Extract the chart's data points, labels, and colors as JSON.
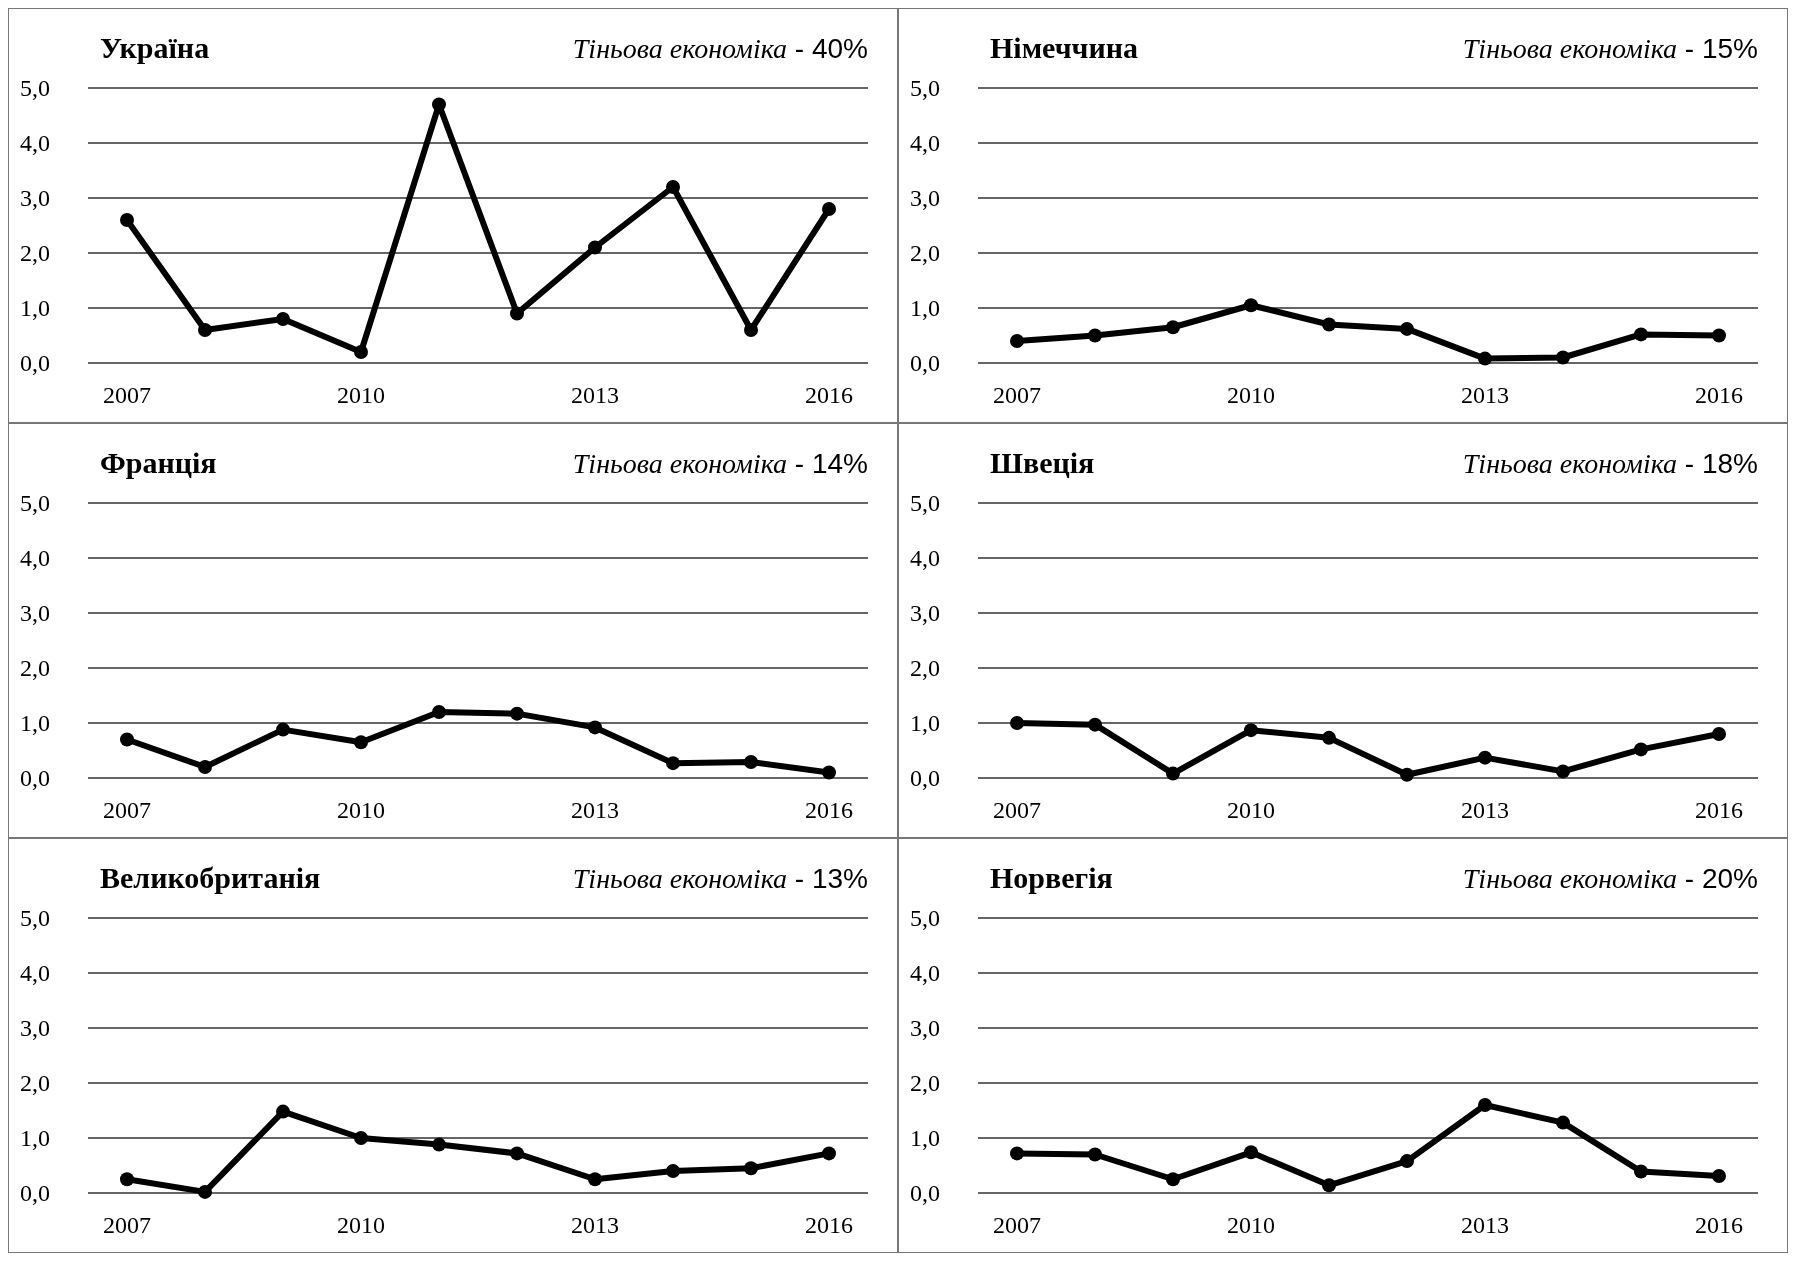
{
  "chart_data": [
    {
      "type": "line",
      "title": "Україна",
      "subtitle": "Тіньова економіка - 40%",
      "x": [
        2007,
        2008,
        2009,
        2010,
        2011,
        2012,
        2013,
        2014,
        2015,
        2016
      ],
      "series": [
        {
          "color": "#000000",
          "values": [
            2.6,
            0.6,
            0.8,
            0.2,
            4.7,
            0.9,
            2.1,
            3.2,
            0.6,
            2.8
          ]
        }
      ],
      "xlim": [
        2006.5,
        2016.5
      ],
      "xticks": [
        2007,
        2010,
        2013,
        2016
      ],
      "ylim": [
        0,
        5
      ],
      "yticks": [
        {
          "value": 0,
          "label": "0,0"
        },
        {
          "value": 1,
          "label": "1,0"
        },
        {
          "value": 2,
          "label": "2,0"
        },
        {
          "value": 3,
          "label": "3,0"
        },
        {
          "value": 4,
          "label": "4,0"
        },
        {
          "value": 5,
          "label": "5,0"
        }
      ],
      "grid": "y",
      "marker": "circle"
    },
    {
      "type": "line",
      "title": "Німеччина",
      "subtitle": "Тіньова економіка - 15%",
      "x": [
        2007,
        2008,
        2009,
        2010,
        2011,
        2012,
        2013,
        2014,
        2015,
        2016
      ],
      "series": [
        {
          "color": "#000000",
          "values": [
            0.4,
            0.5,
            0.65,
            1.05,
            0.7,
            0.62,
            0.08,
            0.1,
            0.52,
            0.5
          ]
        }
      ],
      "xlim": [
        2006.5,
        2016.5
      ],
      "xticks": [
        2007,
        2010,
        2013,
        2016
      ],
      "ylim": [
        0,
        5
      ],
      "yticks": [
        {
          "value": 0,
          "label": "0,0"
        },
        {
          "value": 1,
          "label": "1,0"
        },
        {
          "value": 2,
          "label": "2,0"
        },
        {
          "value": 3,
          "label": "3,0"
        },
        {
          "value": 4,
          "label": "4,0"
        },
        {
          "value": 5,
          "label": "5,0"
        }
      ],
      "grid": "y",
      "marker": "circle"
    },
    {
      "type": "line",
      "title": "Франція",
      "subtitle": "Тіньова економіка - 14%",
      "x": [
        2007,
        2008,
        2009,
        2010,
        2011,
        2012,
        2013,
        2014,
        2015,
        2016
      ],
      "series": [
        {
          "color": "#000000",
          "values": [
            0.7,
            0.2,
            0.88,
            0.65,
            1.2,
            1.17,
            0.92,
            0.27,
            0.29,
            0.1
          ]
        }
      ],
      "xlim": [
        2006.5,
        2016.5
      ],
      "xticks": [
        2007,
        2010,
        2013,
        2016
      ],
      "ylim": [
        0,
        5
      ],
      "yticks": [
        {
          "value": 0,
          "label": "0,0"
        },
        {
          "value": 1,
          "label": "1,0"
        },
        {
          "value": 2,
          "label": "2,0"
        },
        {
          "value": 3,
          "label": "3,0"
        },
        {
          "value": 4,
          "label": "4,0"
        },
        {
          "value": 5,
          "label": "5,0"
        }
      ],
      "grid": "y",
      "marker": "circle"
    },
    {
      "type": "line",
      "title": "Швеція",
      "subtitle": "Тіньова економіка - 18%",
      "x": [
        2007,
        2008,
        2009,
        2010,
        2011,
        2012,
        2013,
        2014,
        2015,
        2016
      ],
      "series": [
        {
          "color": "#000000",
          "values": [
            1.0,
            0.97,
            0.08,
            0.87,
            0.73,
            0.06,
            0.37,
            0.12,
            0.52,
            0.8
          ]
        }
      ],
      "xlim": [
        2006.5,
        2016.5
      ],
      "xticks": [
        2007,
        2010,
        2013,
        2016
      ],
      "ylim": [
        0,
        5
      ],
      "yticks": [
        {
          "value": 0,
          "label": "0,0"
        },
        {
          "value": 1,
          "label": "1,0"
        },
        {
          "value": 2,
          "label": "2,0"
        },
        {
          "value": 3,
          "label": "3,0"
        },
        {
          "value": 4,
          "label": "4,0"
        },
        {
          "value": 5,
          "label": "5,0"
        }
      ],
      "grid": "y",
      "marker": "circle"
    },
    {
      "type": "line",
      "title": "Великобританія",
      "subtitle": "Тіньова економіка - 13%",
      "x": [
        2007,
        2008,
        2009,
        2010,
        2011,
        2012,
        2013,
        2014,
        2015,
        2016
      ],
      "series": [
        {
          "color": "#000000",
          "values": [
            0.25,
            0.02,
            1.48,
            1.0,
            0.88,
            0.72,
            0.25,
            0.4,
            0.45,
            0.72
          ]
        }
      ],
      "xlim": [
        2006.5,
        2016.5
      ],
      "xticks": [
        2007,
        2010,
        2013,
        2016
      ],
      "ylim": [
        0,
        5
      ],
      "yticks": [
        {
          "value": 0,
          "label": "0,0"
        },
        {
          "value": 1,
          "label": "1,0"
        },
        {
          "value": 2,
          "label": "2,0"
        },
        {
          "value": 3,
          "label": "3,0"
        },
        {
          "value": 4,
          "label": "4,0"
        },
        {
          "value": 5,
          "label": "5,0"
        }
      ],
      "grid": "y",
      "marker": "circle"
    },
    {
      "type": "line",
      "title": "Норвегія",
      "subtitle": "Тіньова економіка - 20%",
      "x": [
        2007,
        2008,
        2009,
        2010,
        2011,
        2012,
        2013,
        2014,
        2015,
        2016
      ],
      "series": [
        {
          "color": "#000000",
          "values": [
            0.72,
            0.7,
            0.25,
            0.74,
            0.14,
            0.58,
            1.6,
            1.28,
            0.39,
            0.31
          ]
        }
      ],
      "xlim": [
        2006.5,
        2016.5
      ],
      "xticks": [
        2007,
        2010,
        2013,
        2016
      ],
      "ylim": [
        0,
        5
      ],
      "yticks": [
        {
          "value": 0,
          "label": "0,0"
        },
        {
          "value": 1,
          "label": "1,0"
        },
        {
          "value": 2,
          "label": "2,0"
        },
        {
          "value": 3,
          "label": "3,0"
        },
        {
          "value": 4,
          "label": "4,0"
        },
        {
          "value": 5,
          "label": "5,0"
        }
      ],
      "grid": "y",
      "marker": "circle"
    }
  ]
}
